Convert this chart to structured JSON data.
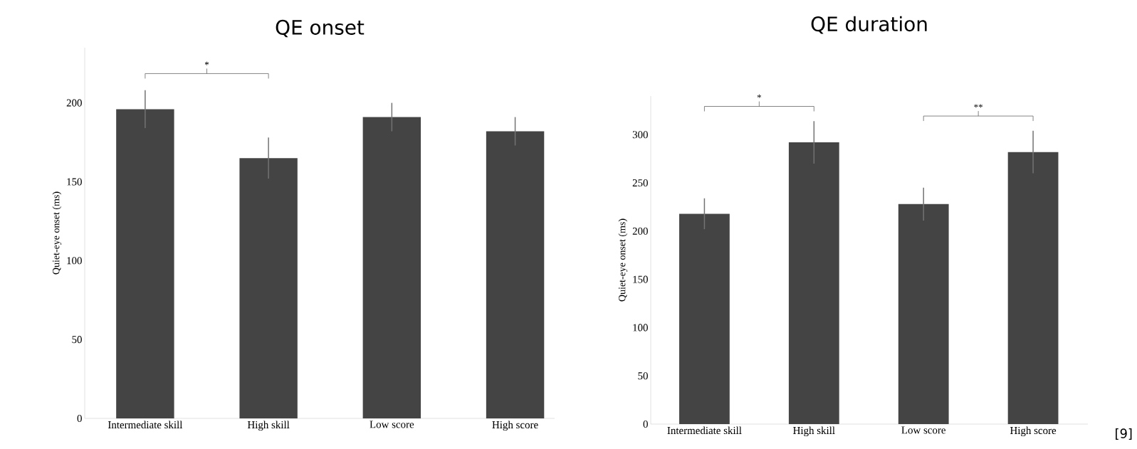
{
  "chart_data": [
    {
      "type": "bar",
      "title": "QE onset",
      "ylabel": "Quiet-eye onset (ms)",
      "categories": [
        "Intermediate skill",
        "High skill",
        "Low score",
        "High score"
      ],
      "values": [
        196,
        165,
        191,
        182
      ],
      "color": "#444444",
      "errors": [
        12,
        13,
        9,
        9
      ],
      "ylim": [
        0,
        235
      ],
      "yticks": [
        0,
        50,
        100,
        150,
        200
      ],
      "annotations": [
        "*"
      ]
    },
    {
      "type": "bar",
      "title": "QE duration",
      "ylabel": "Quiet-eye onset (ms)",
      "categories": [
        "Intermediate skill",
        "High skill",
        "Low score",
        "High score"
      ],
      "values": [
        218,
        292,
        228,
        282
      ],
      "color": "#444444",
      "errors": [
        16,
        22,
        17,
        22
      ],
      "ylim": [
        0,
        340
      ],
      "yticks": [
        0,
        50,
        100,
        150,
        200,
        250,
        300
      ],
      "annotations": [
        "*",
        "**",
        "[9]"
      ]
    }
  ]
}
